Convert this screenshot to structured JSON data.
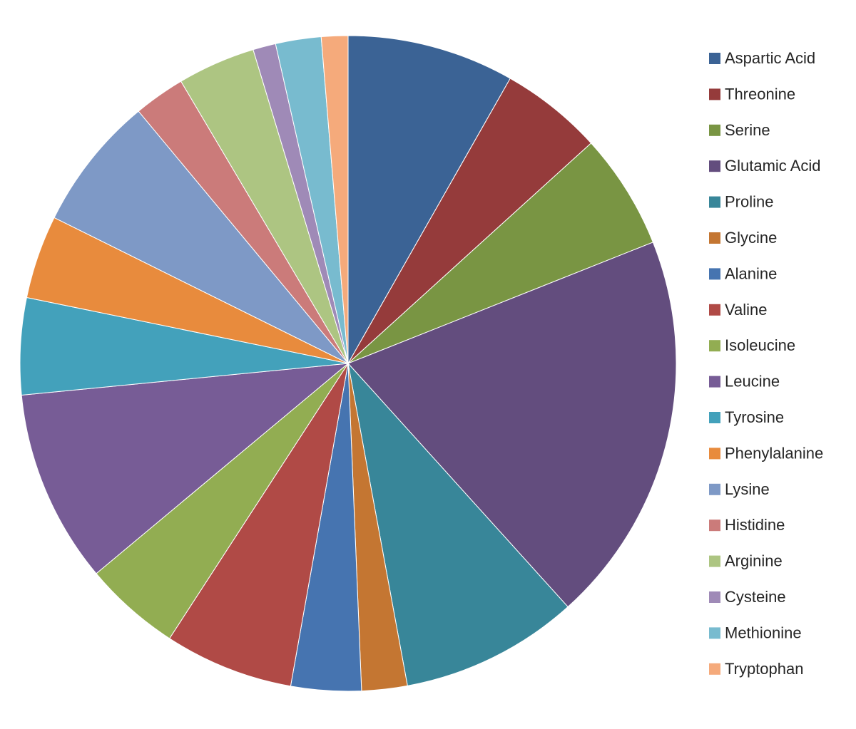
{
  "chart_data": {
    "type": "pie",
    "title": "",
    "legend_position": "right",
    "start_angle_deg": 0,
    "direction": "clockwise",
    "slices": [
      {
        "label": "Aspartic Acid",
        "value": 8.8,
        "color": "#3b6395"
      },
      {
        "label": "Threonine",
        "value": 5.4,
        "color": "#953b3b"
      },
      {
        "label": "Serine",
        "value": 6.1,
        "color": "#799543"
      },
      {
        "label": "Glutamic Acid",
        "value": 20.7,
        "color": "#634d7e"
      },
      {
        "label": "Proline",
        "value": 9.4,
        "color": "#388699"
      },
      {
        "label": "Glycine",
        "value": 2.4,
        "color": "#c47632"
      },
      {
        "label": "Alanine",
        "value": 3.7,
        "color": "#4674b0"
      },
      {
        "label": "Valine",
        "value": 6.8,
        "color": "#b04a46"
      },
      {
        "label": "Isoleucine",
        "value": 5.1,
        "color": "#92ad52"
      },
      {
        "label": "Leucine",
        "value": 10.2,
        "color": "#775c96"
      },
      {
        "label": "Tyrosine",
        "value": 5.1,
        "color": "#43a1bb"
      },
      {
        "label": "Phenylalanine",
        "value": 4.4,
        "color": "#e88b3d"
      },
      {
        "label": "Lysine",
        "value": 7.1,
        "color": "#7e99c6"
      },
      {
        "label": "Histidine",
        "value": 2.7,
        "color": "#cb7b7a"
      },
      {
        "label": "Arginine",
        "value": 4.1,
        "color": "#adc582"
      },
      {
        "label": "Cysteine",
        "value": 1.2,
        "color": "#9f8ab7"
      },
      {
        "label": "Methionine",
        "value": 2.4,
        "color": "#78bbcf"
      },
      {
        "label": "Tryptophan",
        "value": 1.4,
        "color": "#f5aa7b"
      }
    ]
  }
}
